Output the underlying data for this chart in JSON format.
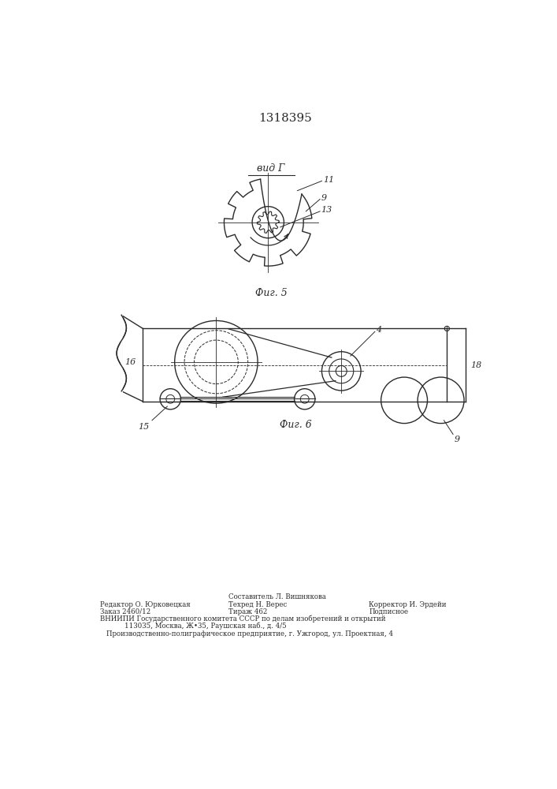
{
  "title": "1318395",
  "title_fontsize": 11,
  "fig5_label": "Фиг. 5",
  "fig6_label": "Фиг. 6",
  "vid_label": "вид Г",
  "background_color": "#ffffff",
  "line_color": "#2a2a2a",
  "label_11": "11",
  "label_9": "9",
  "label_13": "13",
  "label_4": "4",
  "label_15": "15",
  "label_16": "16",
  "label_18": "18",
  "footer_line1": "Редактор О. Юрковецкая",
  "footer_line2": "Заказ 2460/12",
  "footer_col2_line1": "Составитель Л. Вишнякова",
  "footer_col2_line2": "Техред Н. Верес",
  "footer_col2_line3": "Тираж 462",
  "footer_col3_line1": "Корректор И. Эрдейи",
  "footer_col3_line2": "Подписное",
  "footer_line3": "ВНИИПИ Государственного комитета СССР по делам изобретений и открытий",
  "footer_line4": "113035, Москва, Ж•35, Раушская наб., д. 4/5",
  "footer_line5": "Производственно-полиграфическое предприятие, г. Ужгород, ул. Проектная, 4"
}
